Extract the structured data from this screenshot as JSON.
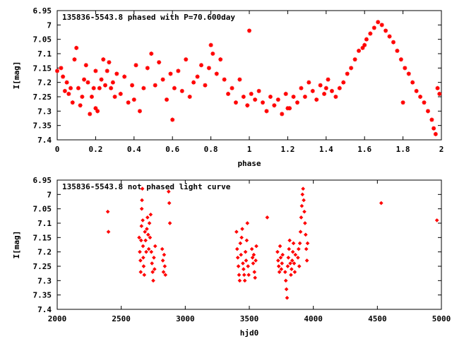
{
  "chart_data": [
    {
      "type": "scatter",
      "title": "135836-5543.8 phased with P=70.600day",
      "xlabel": "phase",
      "ylabel": "I[mag]",
      "xlim": [
        0,
        2
      ],
      "ylim": [
        6.95,
        7.4
      ],
      "y_inverted": true,
      "x_ticks": [
        "0",
        "0.2",
        "0.4",
        "0.6",
        "0.8",
        "1",
        "1.2",
        "1.4",
        "1.6",
        "1.8",
        "2"
      ],
      "y_ticks": [
        "6.95",
        "7",
        "7.05",
        "7.1",
        "7.15",
        "7.2",
        "7.25",
        "7.3",
        "7.35",
        "7.4"
      ],
      "grid": false,
      "marker_color": "#ff0000",
      "marker": "star",
      "series": [
        {
          "points": [
            [
              0.02,
              7.15
            ],
            [
              0.03,
              7.18
            ],
            [
              0.04,
              7.23
            ],
            [
              0.05,
              7.2
            ],
            [
              0.06,
              7.24
            ],
            [
              0.07,
              7.22
            ],
            [
              0.08,
              7.27
            ],
            [
              0.09,
              7.12
            ],
            [
              0.1,
              7.08
            ],
            [
              0.11,
              7.22
            ],
            [
              0.12,
              7.28
            ],
            [
              0.13,
              7.25
            ],
            [
              0.14,
              7.19
            ],
            [
              0.15,
              7.14
            ],
            [
              0.16,
              7.2
            ],
            [
              0.17,
              7.31
            ],
            [
              0.18,
              7.25
            ],
            [
              0.19,
              7.22
            ],
            [
              0.2,
              7.16
            ],
            [
              0.21,
              7.3
            ],
            [
              0.22,
              7.22
            ],
            [
              0.23,
              7.19
            ],
            [
              0.24,
              7.12
            ],
            [
              0.25,
              7.21
            ],
            [
              0.26,
              7.16
            ],
            [
              0.27,
              7.13
            ],
            [
              0.28,
              7.22
            ],
            [
              0.29,
              7.2
            ],
            [
              0.3,
              7.25
            ],
            [
              0.31,
              7.17
            ],
            [
              0.33,
              7.24
            ],
            [
              0.35,
              7.18
            ],
            [
              0.37,
              7.27
            ],
            [
              0.39,
              7.21
            ],
            [
              0.41,
              7.14
            ],
            [
              0.43,
              7.3
            ],
            [
              0.45,
              7.22
            ],
            [
              0.47,
              7.15
            ],
            [
              0.49,
              7.1
            ],
            [
              0.51,
              7.21
            ],
            [
              0.53,
              7.13
            ],
            [
              0.55,
              7.19
            ],
            [
              0.57,
              7.26
            ],
            [
              0.59,
              7.17
            ],
            [
              0.61,
              7.22
            ],
            [
              0.63,
              7.16
            ],
            [
              0.65,
              7.23
            ],
            [
              0.67,
              7.12
            ],
            [
              0.69,
              7.25
            ],
            [
              0.71,
              7.2
            ],
            [
              0.73,
              7.18
            ],
            [
              0.75,
              7.14
            ],
            [
              0.77,
              7.21
            ],
            [
              0.79,
              7.15
            ],
            [
              0.81,
              7.1
            ],
            [
              0.83,
              7.17
            ],
            [
              0.85,
              7.12
            ],
            [
              0.87,
              7.19
            ],
            [
              0.89,
              7.24
            ],
            [
              0.91,
              7.22
            ],
            [
              0.93,
              7.27
            ],
            [
              0.95,
              7.19
            ],
            [
              0.97,
              7.25
            ],
            [
              0.99,
              7.28
            ],
            [
              1.01,
              7.24
            ],
            [
              1.03,
              7.26
            ],
            [
              1.05,
              7.23
            ],
            [
              1.07,
              7.27
            ],
            [
              1.09,
              7.3
            ],
            [
              1.11,
              7.25
            ],
            [
              1.13,
              7.28
            ],
            [
              1.15,
              7.26
            ],
            [
              1.17,
              7.31
            ],
            [
              1.19,
              7.24
            ],
            [
              1.21,
              7.29
            ],
            [
              1.23,
              7.25
            ],
            [
              1.25,
              7.27
            ],
            [
              1.27,
              7.22
            ],
            [
              1.29,
              7.25
            ],
            [
              1.31,
              7.2
            ],
            [
              1.33,
              7.23
            ],
            [
              1.35,
              7.26
            ],
            [
              1.37,
              7.21
            ],
            [
              1.39,
              7.24
            ],
            [
              1.41,
              7.19
            ],
            [
              1.43,
              7.23
            ],
            [
              1.45,
              7.25
            ],
            [
              1.47,
              7.22
            ],
            [
              1.49,
              7.2
            ],
            [
              1.51,
              7.17
            ],
            [
              1.53,
              7.15
            ],
            [
              1.55,
              7.12
            ],
            [
              1.57,
              7.09
            ],
            [
              1.59,
              7.08
            ],
            [
              1.61,
              7.05
            ],
            [
              1.63,
              7.03
            ],
            [
              1.65,
              7.01
            ],
            [
              1.67,
              6.99
            ],
            [
              1.69,
              7.0
            ],
            [
              1.71,
              7.02
            ],
            [
              1.73,
              7.04
            ],
            [
              1.75,
              7.06
            ],
            [
              1.77,
              7.09
            ],
            [
              1.79,
              7.12
            ],
            [
              1.81,
              7.15
            ],
            [
              1.83,
              7.17
            ],
            [
              1.85,
              7.2
            ],
            [
              1.87,
              7.23
            ],
            [
              1.89,
              7.25
            ],
            [
              1.91,
              7.27
            ],
            [
              1.93,
              7.3
            ],
            [
              1.95,
              7.33
            ],
            [
              1.96,
              7.36
            ],
            [
              1.97,
              7.38
            ],
            [
              1.98,
              7.22
            ],
            [
              1.99,
              7.24
            ],
            [
              0.0,
              7.16
            ],
            [
              0.2,
              7.29
            ],
            [
              0.4,
              7.26
            ],
            [
              0.6,
              7.33
            ],
            [
              0.8,
              7.07
            ],
            [
              1.0,
              7.02
            ],
            [
              1.2,
              7.29
            ],
            [
              1.4,
              7.22
            ],
            [
              1.6,
              7.07
            ],
            [
              1.8,
              7.27
            ]
          ]
        }
      ]
    },
    {
      "type": "scatter",
      "title": "135836-5543.8 not phased light curve",
      "xlabel": "hjd0",
      "ylabel": "I[mag]",
      "xlim": [
        2000,
        5000
      ],
      "ylim": [
        6.95,
        7.4
      ],
      "y_inverted": true,
      "x_ticks": [
        "2000",
        "2500",
        "3000",
        "3500",
        "4000",
        "4500",
        "5000"
      ],
      "y_ticks": [
        "6.95",
        "7",
        "7.05",
        "7.1",
        "7.15",
        "7.2",
        "7.25",
        "7.3",
        "7.35",
        "7.4"
      ],
      "grid": false,
      "marker_color": "#ff0000",
      "marker": "diamond",
      "series": [
        {
          "points": [
            [
              2395,
              7.06
            ],
            [
              2400,
              7.13
            ],
            [
              2640,
              7.15
            ],
            [
              2645,
              7.2
            ],
            [
              2650,
              7.23
            ],
            [
              2652,
              7.27
            ],
            [
              2655,
              7.16
            ],
            [
              2658,
              7.11
            ],
            [
              2660,
              7.05
            ],
            [
              2662,
              7.02
            ],
            [
              2665,
              6.98
            ],
            [
              2668,
              7.09
            ],
            [
              2670,
              7.18
            ],
            [
              2672,
              7.22
            ],
            [
              2675,
              7.25
            ],
            [
              2680,
              7.28
            ],
            [
              2685,
              7.13
            ],
            [
              2690,
              7.16
            ],
            [
              2695,
              7.2
            ],
            [
              2700,
              7.12
            ],
            [
              2705,
              7.08
            ],
            [
              2710,
              7.14
            ],
            [
              2715,
              7.19
            ],
            [
              2720,
              7.1
            ],
            [
              2725,
              7.15
            ],
            [
              2730,
              7.07
            ],
            [
              2735,
              7.2
            ],
            [
              2740,
              7.24
            ],
            [
              2745,
              7.27
            ],
            [
              2750,
              7.3
            ],
            [
              2755,
              7.22
            ],
            [
              2760,
              7.26
            ],
            [
              2765,
              7.18
            ],
            [
              2820,
              7.19
            ],
            [
              2825,
              7.23
            ],
            [
              2830,
              7.27
            ],
            [
              2835,
              7.21
            ],
            [
              2840,
              7.25
            ],
            [
              2845,
              7.28
            ],
            [
              2870,
              6.99
            ],
            [
              2875,
              7.03
            ],
            [
              2880,
              7.1
            ],
            [
              3400,
              7.13
            ],
            [
              3405,
              7.19
            ],
            [
              3410,
              7.22
            ],
            [
              3415,
              7.25
            ],
            [
              3420,
              7.28
            ],
            [
              3425,
              7.3
            ],
            [
              3430,
              7.17
            ],
            [
              3435,
              7.21
            ],
            [
              3440,
              7.15
            ],
            [
              3445,
              7.12
            ],
            [
              3450,
              7.24
            ],
            [
              3455,
              7.26
            ],
            [
              3460,
              7.28
            ],
            [
              3465,
              7.3
            ],
            [
              3470,
              7.2
            ],
            [
              3475,
              7.23
            ],
            [
              3480,
              7.16
            ],
            [
              3485,
              7.1
            ],
            [
              3490,
              7.25
            ],
            [
              3495,
              7.28
            ],
            [
              3520,
              7.19
            ],
            [
              3525,
              7.22
            ],
            [
              3530,
              7.24
            ],
            [
              3535,
              7.21
            ],
            [
              3540,
              7.27
            ],
            [
              3545,
              7.29
            ],
            [
              3550,
              7.23
            ],
            [
              3555,
              7.18
            ],
            [
              3640,
              7.08
            ],
            [
              3720,
              7.2
            ],
            [
              3725,
              7.23
            ],
            [
              3730,
              7.25
            ],
            [
              3735,
              7.27
            ],
            [
              3740,
              7.18
            ],
            [
              3745,
              7.22
            ],
            [
              3750,
              7.26
            ],
            [
              3755,
              7.24
            ],
            [
              3760,
              7.21
            ],
            [
              3780,
              7.27
            ],
            [
              3785,
              7.3
            ],
            [
              3790,
              7.33
            ],
            [
              3795,
              7.36
            ],
            [
              3800,
              7.25
            ],
            [
              3805,
              7.22
            ],
            [
              3810,
              7.19
            ],
            [
              3815,
              7.16
            ],
            [
              3820,
              7.24
            ],
            [
              3825,
              7.28
            ],
            [
              3830,
              7.26
            ],
            [
              3835,
              7.23
            ],
            [
              3840,
              7.2
            ],
            [
              3845,
              7.17
            ],
            [
              3850,
              7.24
            ],
            [
              3855,
              7.27
            ],
            [
              3860,
              7.21
            ],
            [
              3880,
              7.22
            ],
            [
              3885,
              7.19
            ],
            [
              3890,
              7.25
            ],
            [
              3895,
              7.17
            ],
            [
              3900,
              7.13
            ],
            [
              3905,
              7.08
            ],
            [
              3910,
              7.04
            ],
            [
              3915,
              7.0
            ],
            [
              3920,
              6.98
            ],
            [
              3925,
              7.02
            ],
            [
              3930,
              7.06
            ],
            [
              3935,
              7.1
            ],
            [
              3940,
              7.14
            ],
            [
              3945,
              7.19
            ],
            [
              3950,
              7.23
            ],
            [
              3955,
              7.17
            ],
            [
              4530,
              7.03
            ],
            [
              4965,
              7.09
            ]
          ]
        }
      ]
    }
  ]
}
